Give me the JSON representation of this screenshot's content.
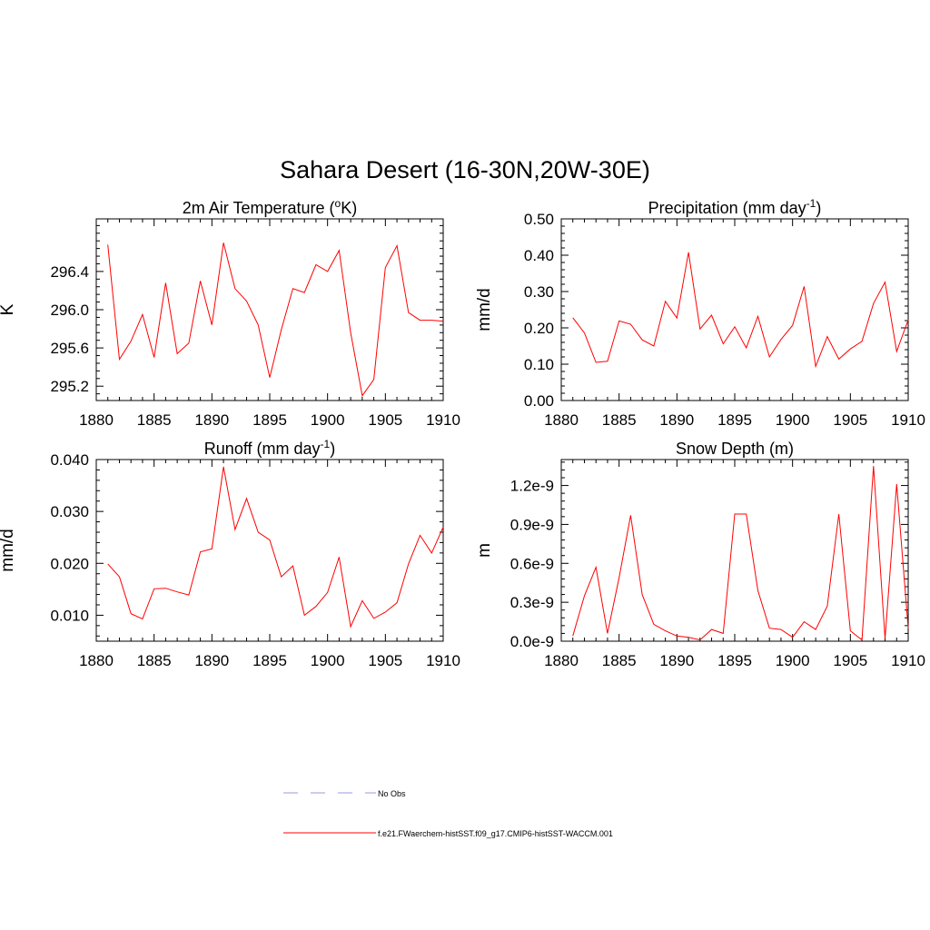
{
  "figure": {
    "title": "Sahara Desert (16-30N,20W-30E)",
    "legend": [
      {
        "label": "No Obs",
        "color": "#9999dd",
        "dashed": true
      },
      {
        "label": "f.e21.FWaerchem-histSST.f09_g17.CMIP6-histSST-WACCM.001",
        "color": "#ff0000",
        "dashed": false
      }
    ]
  },
  "chart_data": [
    {
      "type": "line",
      "title": "2m Air Temperature (",
      "title_sup": "o",
      "title_post": "K)",
      "ylabel": "K",
      "xlim": [
        1880,
        1910
      ],
      "ylim": [
        295.05,
        296.95
      ],
      "yticks": [
        295.2,
        295.6,
        296.0,
        296.4
      ],
      "ytick_labels": [
        "295.2",
        "295.6",
        "296.0",
        "296.4"
      ],
      "xticks": [
        1880,
        1885,
        1890,
        1895,
        1900,
        1905,
        1910
      ],
      "xtick_labels": [
        "1880",
        "1885",
        "1890",
        "1895",
        "1900",
        "1905",
        "1910"
      ],
      "series": [
        {
          "color": "#ff0000",
          "x": [
            1881,
            1882,
            1883,
            1884,
            1885,
            1886,
            1887,
            1888,
            1889,
            1890,
            1891,
            1892,
            1893,
            1894,
            1895,
            1896,
            1897,
            1898,
            1899,
            1900,
            1901,
            1902,
            1903,
            1904,
            1905,
            1906,
            1907,
            1908,
            1909,
            1910
          ],
          "values": [
            296.68,
            295.48,
            295.67,
            295.95,
            295.5,
            296.28,
            295.54,
            295.65,
            296.3,
            295.84,
            296.7,
            296.22,
            296.09,
            295.84,
            295.29,
            295.79,
            296.22,
            296.18,
            296.47,
            296.4,
            296.62,
            295.76,
            295.1,
            295.27,
            296.44,
            296.67,
            295.97,
            295.89,
            295.89,
            295.88
          ]
        }
      ]
    },
    {
      "type": "line",
      "title": "Precipitation (mm day",
      "title_sup": "-1",
      "title_post": ")",
      "ylabel": "mm/d",
      "xlim": [
        1880,
        1910
      ],
      "ylim": [
        0.0,
        0.5
      ],
      "yticks": [
        0.0,
        0.1,
        0.2,
        0.3,
        0.4,
        0.5
      ],
      "ytick_labels": [
        "0.00",
        "0.10",
        "0.20",
        "0.30",
        "0.40",
        "0.50"
      ],
      "xticks": [
        1880,
        1885,
        1890,
        1895,
        1900,
        1905,
        1910
      ],
      "xtick_labels": [
        "1880",
        "1885",
        "1890",
        "1895",
        "1900",
        "1905",
        "1910"
      ],
      "series": [
        {
          "color": "#ff0000",
          "x": [
            1881,
            1882,
            1883,
            1884,
            1885,
            1886,
            1887,
            1888,
            1889,
            1890,
            1891,
            1892,
            1893,
            1894,
            1895,
            1896,
            1897,
            1898,
            1899,
            1900,
            1901,
            1902,
            1903,
            1904,
            1905,
            1906,
            1907,
            1908,
            1909,
            1910
          ],
          "values": [
            0.228,
            0.186,
            0.105,
            0.108,
            0.219,
            0.21,
            0.167,
            0.15,
            0.273,
            0.227,
            0.408,
            0.197,
            0.235,
            0.156,
            0.203,
            0.145,
            0.232,
            0.12,
            0.168,
            0.207,
            0.314,
            0.094,
            0.176,
            0.114,
            0.142,
            0.163,
            0.267,
            0.326,
            0.135,
            0.222
          ]
        }
      ]
    },
    {
      "type": "line",
      "title": "Runoff (mm day",
      "title_sup": "-1",
      "title_post": ")",
      "ylabel": "mm/d",
      "xlim": [
        1880,
        1910
      ],
      "ylim": [
        0.005,
        0.04
      ],
      "yticks": [
        0.01,
        0.02,
        0.03,
        0.04
      ],
      "ytick_labels": [
        "0.010",
        "0.020",
        "0.030",
        "0.040"
      ],
      "xticks": [
        1880,
        1885,
        1890,
        1895,
        1900,
        1905,
        1910
      ],
      "xtick_labels": [
        "1880",
        "1885",
        "1890",
        "1895",
        "1900",
        "1905",
        "1910"
      ],
      "series": [
        {
          "color": "#ff0000",
          "x": [
            1881,
            1882,
            1883,
            1884,
            1885,
            1886,
            1887,
            1888,
            1889,
            1890,
            1891,
            1892,
            1893,
            1894,
            1895,
            1896,
            1897,
            1898,
            1899,
            1900,
            1901,
            1902,
            1903,
            1904,
            1905,
            1906,
            1907,
            1908,
            1909,
            1910
          ],
          "values": [
            0.0199,
            0.0174,
            0.0103,
            0.0093,
            0.0151,
            0.0152,
            0.0145,
            0.0139,
            0.0222,
            0.0228,
            0.0386,
            0.0265,
            0.0325,
            0.026,
            0.0245,
            0.0174,
            0.0195,
            0.01,
            0.0117,
            0.0144,
            0.0212,
            0.0078,
            0.0128,
            0.0094,
            0.0106,
            0.0124,
            0.0199,
            0.0254,
            0.022,
            0.027
          ]
        }
      ]
    },
    {
      "type": "line",
      "title": "Snow Depth (m)",
      "title_sup": "",
      "title_post": "",
      "ylabel": "m",
      "xlim": [
        1880,
        1910
      ],
      "ylim": [
        0.0,
        1.4e-09
      ],
      "yticks": [
        0.0,
        3e-10,
        6e-10,
        9e-10,
        1.2e-09
      ],
      "ytick_labels": [
        "0.0e-9",
        "0.3e-9",
        "0.6e-9",
        "0.9e-9",
        "1.2e-9"
      ],
      "xticks": [
        1880,
        1885,
        1890,
        1895,
        1900,
        1905,
        1910
      ],
      "xtick_labels": [
        "1880",
        "1885",
        "1890",
        "1895",
        "1900",
        "1905",
        "1910"
      ],
      "series": [
        {
          "color": "#ff0000",
          "x": [
            1881,
            1882,
            1883,
            1884,
            1885,
            1886,
            1887,
            1888,
            1889,
            1890,
            1891,
            1892,
            1893,
            1894,
            1895,
            1896,
            1897,
            1898,
            1899,
            1900,
            1901,
            1902,
            1903,
            1904,
            1905,
            1906,
            1907,
            1908,
            1909,
            1910
          ],
          "values": [
            4e-11,
            3.5e-10,
            5.7e-10,
            6e-11,
            4.9e-10,
            9.7e-10,
            3.6e-10,
            1.3e-10,
            8e-11,
            4e-11,
            3e-11,
            1e-11,
            9e-11,
            6e-11,
            9.8e-10,
            9.8e-10,
            3.9e-10,
            1e-10,
            9e-11,
            3e-11,
            1.5e-10,
            9e-11,
            2.7e-10,
            9.8e-10,
            8e-11,
            1e-11,
            1.35e-09,
            2e-11,
            1.21e-09,
            1e-10
          ]
        }
      ]
    }
  ]
}
